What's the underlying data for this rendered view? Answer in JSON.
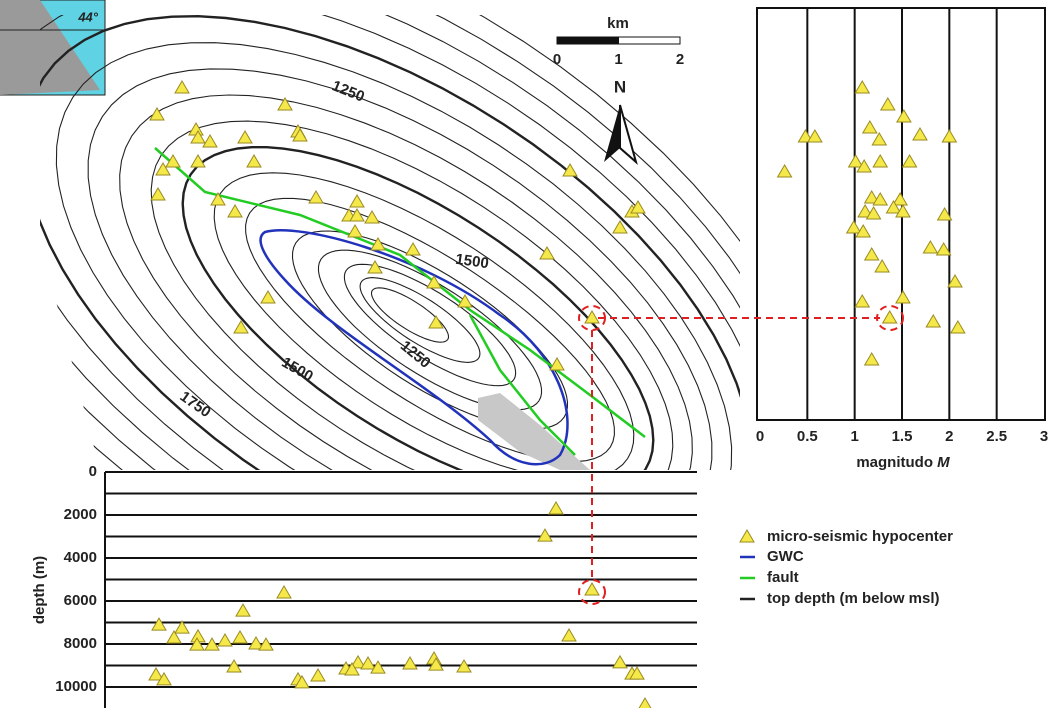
{
  "inset": {
    "label": "44°"
  },
  "map": {
    "contour_labels": [
      "1250",
      "1500",
      "1250",
      "1500",
      "1750"
    ],
    "scale_bar": {
      "unit": "km",
      "ticks": [
        0,
        1,
        2
      ]
    },
    "north": "N"
  },
  "magnitude_panel": {
    "xlabel": "magnitudo",
    "xlabel_symbol": "M",
    "xlim": [
      0,
      3
    ],
    "xticks": [
      0,
      0.5,
      1,
      1.5,
      2,
      2.5,
      3
    ],
    "values": [
      1.08,
      1.35,
      1.52,
      0.48,
      0.58,
      1.16,
      1.26,
      1.69,
      2.0,
      1.01,
      1.1,
      1.27,
      1.58,
      0.26,
      1.18,
      1.27,
      1.48,
      1.11,
      1.2,
      1.41,
      1.51,
      1.95,
      0.99,
      1.09,
      1.18,
      1.8,
      1.94,
      1.29,
      2.06,
      1.08,
      1.51,
      1.37,
      1.83,
      2.09,
      1.18
    ]
  },
  "depth_panel": {
    "ylabel": "depth (m)",
    "ylim": [
      0,
      11000
    ],
    "yticks": [
      0,
      2000,
      4000,
      6000,
      8000,
      10000
    ],
    "gridlines": [
      0,
      1000,
      2000,
      3000,
      4000,
      5000,
      6000,
      7000,
      8000,
      9000,
      10000
    ],
    "values": [
      1720,
      2980,
      5490,
      6470,
      5630,
      7120,
      7260,
      7720,
      7670,
      8050,
      8050,
      7860,
      7720,
      8000,
      8050,
      7630,
      9070,
      9440,
      9670,
      9670,
      9810,
      9490,
      9160,
      8880,
      9210,
      8930,
      9120,
      8930,
      8700,
      8980,
      9070,
      8880,
      9400,
      9400,
      10840
    ]
  },
  "legend": [
    "micro-seismic hypocenter",
    "GWC",
    "fault",
    "top depth (m below msl)"
  ]
}
